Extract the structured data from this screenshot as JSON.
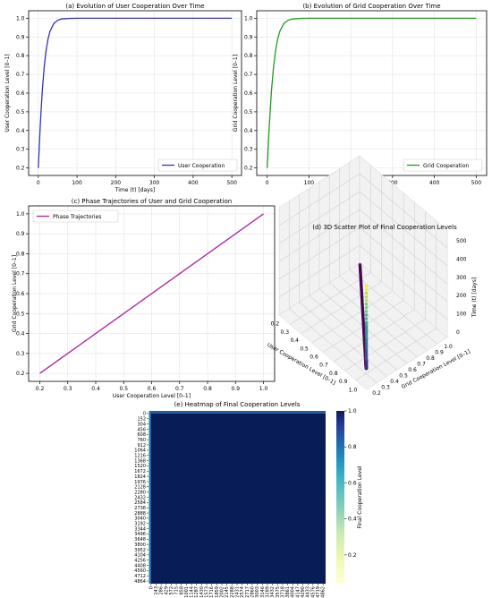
{
  "chart_data": [
    {
      "id": "a",
      "type": "line",
      "title": "(a) Evolution of User Cooperation Over Time",
      "xlabel": "Time (t) [days]",
      "ylabel": "User Cooperation Level [0–1]",
      "xlim": [
        -25,
        525
      ],
      "ylim": [
        0.16,
        1.04
      ],
      "xticks": [
        0,
        100,
        200,
        300,
        400,
        500
      ],
      "yticks": [
        0.2,
        0.3,
        0.4,
        0.5,
        0.6,
        0.7,
        0.8,
        0.9,
        1.0
      ],
      "ytick_labels": [
        "0.2",
        "0.3",
        "0.4",
        "0.5",
        "0.6",
        "0.7",
        "0.8",
        "0.9",
        "1.0"
      ],
      "grid": true,
      "legend": "lower-right",
      "series": [
        {
          "name": "User Cooperation",
          "color": "#3333bb",
          "x": [
            0,
            5,
            10,
            15,
            20,
            25,
            30,
            40,
            50,
            60,
            80,
            100,
            150,
            200,
            300,
            400,
            500
          ],
          "y": [
            0.2,
            0.426,
            0.605,
            0.735,
            0.826,
            0.888,
            0.929,
            0.972,
            0.989,
            0.996,
            0.999,
            1.0,
            1.0,
            1.0,
            1.0,
            1.0,
            1.0
          ]
        }
      ]
    },
    {
      "id": "b",
      "type": "line",
      "title": "(b) Evolution of Grid Cooperation Over Time",
      "xlabel": "Time (t) [days]",
      "ylabel": "Grid Cooperation Level [0–1]",
      "xlim": [
        -25,
        525
      ],
      "ylim": [
        0.16,
        1.04
      ],
      "xticks": [
        0,
        100,
        200,
        300,
        400,
        500
      ],
      "yticks": [
        0.2,
        0.3,
        0.4,
        0.5,
        0.6,
        0.7,
        0.8,
        0.9,
        1.0
      ],
      "ytick_labels": [
        "0.2",
        "0.3",
        "0.4",
        "0.5",
        "0.6",
        "0.7",
        "0.8",
        "0.9",
        "1.0"
      ],
      "grid": true,
      "legend": "lower-right",
      "series": [
        {
          "name": "Grid Cooperation",
          "color": "#229922",
          "x": [
            0,
            5,
            10,
            15,
            20,
            25,
            30,
            40,
            50,
            60,
            80,
            100,
            150,
            200,
            300,
            400,
            500
          ],
          "y": [
            0.2,
            0.426,
            0.605,
            0.735,
            0.826,
            0.888,
            0.929,
            0.972,
            0.989,
            0.996,
            0.999,
            1.0,
            1.0,
            1.0,
            1.0,
            1.0,
            1.0
          ]
        }
      ]
    },
    {
      "id": "c",
      "type": "line",
      "title": "(c) Phase Trajectories of User and Grid Cooperation",
      "xlabel": "User Cooperation Level [0–1]",
      "ylabel": "Grid Cooperation Level [0–1]",
      "xlim": [
        0.16,
        1.04
      ],
      "ylim": [
        0.16,
        1.04
      ],
      "xticks": [
        0.2,
        0.3,
        0.4,
        0.5,
        0.6,
        0.7,
        0.8,
        0.9,
        1.0
      ],
      "xtick_labels": [
        "0.2",
        "0.3",
        "0.4",
        "0.5",
        "0.6",
        "0.7",
        "0.8",
        "0.9",
        "1.0"
      ],
      "yticks": [
        0.2,
        0.3,
        0.4,
        0.5,
        0.6,
        0.7,
        0.8,
        0.9,
        1.0
      ],
      "ytick_labels": [
        "0.2",
        "0.3",
        "0.4",
        "0.5",
        "0.6",
        "0.7",
        "0.8",
        "0.9",
        "1.0"
      ],
      "grid": true,
      "legend": "upper-left",
      "series": [
        {
          "name": "Phase Trajectories",
          "color": "#aa2299",
          "x": [
            0.2,
            1.0
          ],
          "y": [
            0.2,
            1.0
          ]
        }
      ]
    },
    {
      "id": "d",
      "type": "scatter",
      "title": "(d) 3D Scatter Plot of Final Cooperation Levels",
      "xlabel": "User Cooperation Level [0–1]",
      "ylabel": "Grid Cooperation Level [0–1]",
      "zlabel": "Time (t) [days]",
      "xticks": [
        "0.2",
        "0.3",
        "0.4",
        "0.5",
        "0.6",
        "0.7",
        "0.8",
        "0.9",
        "1.0"
      ],
      "yticks": [
        "0.2",
        "0.3",
        "0.4",
        "0.5",
        "0.6",
        "0.7",
        "0.8",
        "0.9",
        "1.0"
      ],
      "zticks": [
        "0",
        "100",
        "200",
        "300",
        "400",
        "500"
      ],
      "colormap": "viridis",
      "x": [
        0.2,
        0.3,
        0.4,
        0.5,
        0.6,
        0.7,
        0.8,
        0.9,
        0.95,
        0.98,
        0.99,
        1.0,
        1.0,
        1.0,
        1.0,
        1.0
      ],
      "y": [
        0.2,
        0.3,
        0.4,
        0.5,
        0.6,
        0.7,
        0.8,
        0.9,
        0.95,
        0.98,
        0.99,
        1.0,
        1.0,
        1.0,
        1.0,
        1.0
      ],
      "z": [
        0,
        2,
        4,
        6,
        8,
        11,
        14,
        19,
        25,
        32,
        40,
        60,
        100,
        200,
        300,
        500
      ]
    },
    {
      "id": "e",
      "type": "heatmap",
      "title": "(e) Heatmap of Final Cooperation Levels",
      "colorbar_label": "Final Cooperation Level",
      "colormap": "YlGnBu",
      "colorbar_ticks": [
        "0.2",
        "0.4",
        "0.6",
        "0.8",
        "1.0"
      ],
      "colorbar_values": [
        0.2,
        0.4,
        0.6,
        0.8,
        1.0
      ],
      "value_range": [
        0.04,
        1.0
      ],
      "background_value": 1.0,
      "edge_values": [
        0.35,
        0.75
      ],
      "row_labels": [
        "0",
        "152",
        "304",
        "456",
        "608",
        "760",
        "912",
        "1064",
        "1216",
        "1368",
        "1520",
        "1672",
        "1824",
        "1976",
        "2128",
        "2280",
        "2432",
        "2584",
        "2736",
        "2888",
        "3040",
        "3192",
        "3344",
        "3496",
        "3648",
        "3800",
        "3952",
        "4104",
        "4256",
        "4408",
        "4560",
        "4712",
        "4864"
      ],
      "col_labels": [
        "0",
        "143",
        "286",
        "429",
        "572",
        "715",
        "858",
        "1001",
        "1144",
        "1287",
        "1430",
        "1573",
        "1716",
        "1859",
        "2002",
        "2145",
        "2288",
        "2431",
        "2574",
        "2717",
        "2860",
        "3003",
        "3146",
        "3289",
        "3432",
        "3575",
        "3718",
        "3861",
        "4004",
        "4147",
        "4290",
        "4433",
        "4576",
        "4719",
        "4862"
      ]
    }
  ]
}
